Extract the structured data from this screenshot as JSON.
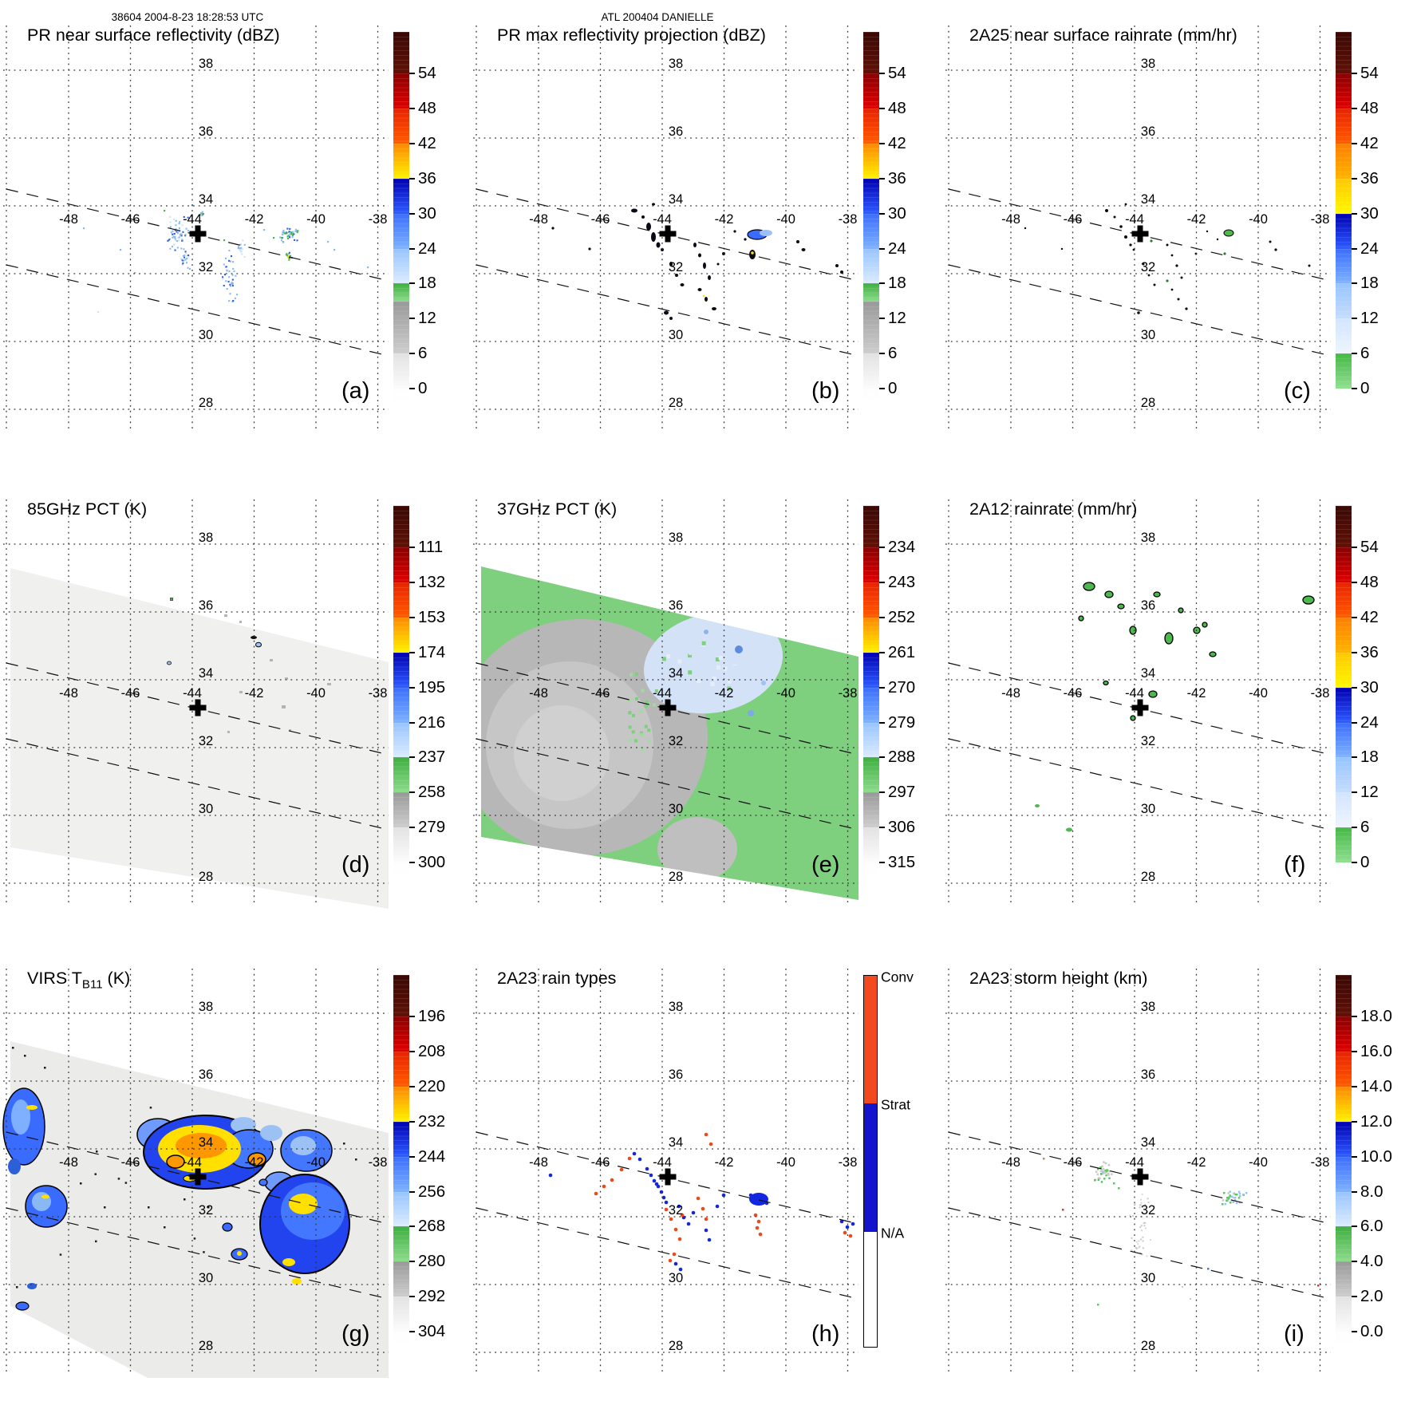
{
  "header": {
    "scan_info": "38604 2004-8-23 18:28:53 UTC",
    "storm_name": "ATL 200404 DANIELLE"
  },
  "map_grid": {
    "lon_labels": [
      "-48",
      "-46",
      "-44",
      "-42",
      "-40",
      "-38"
    ],
    "lat_labels": [
      "38",
      "36",
      "34",
      "32",
      "30",
      "28"
    ]
  },
  "palette": {
    "pale_blue": "#cfe2fa",
    "light_blue": "#8ab8f2",
    "mid_blue": "#2c5fd8",
    "deep_blue": "#1326e0",
    "royal": "#3a6bff",
    "bright_blue": "#2244ee",
    "sky": "#6f9bff",
    "powder": "#9cc2f5",
    "green": "#46b846",
    "blob_green": "#4db84d",
    "dark_green": "#2f7d2f",
    "yellow": "#ffe000",
    "orange": "#ff9800",
    "conv_orange": "#f04818",
    "swath_gray": "#f0f0ef",
    "swath_green": "#7ecf7e",
    "cloud_gray": "#b7b7b7",
    "pale_gray": "#c9c9c9",
    "virs_gray": "#ebebea",
    "blue_patch": "#d4e2f8",
    "marker_black": "#000000"
  },
  "scales": {
    "dbz": {
      "segments": [
        [
          "#3a0803",
          "#601107",
          0.112
        ],
        [
          "#8c0000",
          "#e00000",
          0.0944
        ],
        [
          "#ea2200",
          "#ff5c00",
          0.0944
        ],
        [
          "#ff8800",
          "#fff200",
          0.0944
        ],
        [
          "#0000b4",
          "#2e5cff",
          0.0944
        ],
        [
          "#3a6eff",
          "#7fb2ff",
          0.0944
        ],
        [
          "#96c4ff",
          "#dcebff",
          0.0944
        ],
        [
          "#3fae3f",
          "#8cdc8c",
          0.0476
        ],
        [
          "#999999",
          "#cdcdcd",
          0.1412
        ],
        [
          "#e2e2e2",
          "#fbfbfb",
          0.0944
        ],
        [
          "#fdfdfd",
          "#ffffff",
          0.0386
        ]
      ]
    },
    "rain": {
      "segments": [
        [
          "#3a0803",
          "#601107",
          0.112
        ],
        [
          "#8c0000",
          "#e00000",
          0.0944
        ],
        [
          "#ea2200",
          "#ff5c00",
          0.0944
        ],
        [
          "#ff7e00",
          "#ffb400",
          0.0944
        ],
        [
          "#ffc800",
          "#fff800",
          0.0944
        ],
        [
          "#0000b4",
          "#2e5cff",
          0.0944
        ],
        [
          "#3a6eff",
          "#7fb2ff",
          0.0944
        ],
        [
          "#96c4ff",
          "#c4dcff",
          0.0944
        ],
        [
          "#d2e4ff",
          "#eef5ff",
          0.0944
        ],
        [
          "#46b846",
          "#8fe08f",
          0.0944
        ],
        [
          "#fdfdfd",
          "#ffffff",
          0.0386
        ]
      ]
    },
    "pct": {
      "segments": [
        [
          "#3a0803",
          "#601107",
          0.112
        ],
        [
          "#8c0000",
          "#e00000",
          0.0944
        ],
        [
          "#ea2200",
          "#ff5c00",
          0.0944
        ],
        [
          "#ff8800",
          "#fff200",
          0.0944
        ],
        [
          "#0000b4",
          "#2e5cff",
          0.0944
        ],
        [
          "#3a6eff",
          "#7fb2ff",
          0.0944
        ],
        [
          "#96c4ff",
          "#dcebff",
          0.0944
        ],
        [
          "#3fae3f",
          "#8cdc8c",
          0.0944
        ],
        [
          "#999999",
          "#cdcdcd",
          0.0944
        ],
        [
          "#e2e2e2",
          "#fcfcfc",
          0.0944
        ],
        [
          "#fdfdfd",
          "#ffffff",
          0.0386
        ]
      ]
    },
    "raintype": {
      "categories": [
        {
          "label": "Conv",
          "color": "#f2491e",
          "frac": 0.345
        },
        {
          "label": "Strat",
          "color": "#1414cc",
          "frac": 0.345
        },
        {
          "label": "N/A",
          "color": "#ffffff",
          "frac": 0.31
        }
      ]
    }
  },
  "panels": [
    {
      "id": "a",
      "letter": "(a)",
      "title_pre": "PR near surface reflectivity (dBZ)",
      "title_sub": "",
      "title_post": "",
      "scale": "dbz",
      "ticks": [
        "54",
        "48",
        "42",
        "36",
        "30",
        "24",
        "18",
        "12",
        "6",
        "0"
      ]
    },
    {
      "id": "b",
      "letter": "(b)",
      "title_pre": "PR max reflectivity projection (dBZ)",
      "title_sub": "",
      "title_post": "",
      "scale": "dbz",
      "ticks": [
        "54",
        "48",
        "42",
        "36",
        "30",
        "24",
        "18",
        "12",
        "6",
        "0"
      ]
    },
    {
      "id": "c",
      "letter": "(c)",
      "title_pre": "2A25 near surface rainrate (mm/hr)",
      "title_sub": "",
      "title_post": "",
      "scale": "rain",
      "ticks": [
        "54",
        "48",
        "42",
        "36",
        "30",
        "24",
        "18",
        "12",
        "6",
        "0"
      ]
    },
    {
      "id": "d",
      "letter": "(d)",
      "title_pre": "85GHz PCT (K)",
      "title_sub": "",
      "title_post": "",
      "scale": "pct",
      "ticks": [
        "111",
        "132",
        "153",
        "174",
        "195",
        "216",
        "237",
        "258",
        "279",
        "300"
      ]
    },
    {
      "id": "e",
      "letter": "(e)",
      "title_pre": "37GHz PCT (K)",
      "title_sub": "",
      "title_post": "",
      "scale": "pct",
      "ticks": [
        "234",
        "243",
        "252",
        "261",
        "270",
        "279",
        "288",
        "297",
        "306",
        "315"
      ]
    },
    {
      "id": "f",
      "letter": "(f)",
      "title_pre": "2A12 rainrate (mm/hr)",
      "title_sub": "",
      "title_post": "",
      "scale": "rain",
      "ticks": [
        "54",
        "48",
        "42",
        "36",
        "30",
        "24",
        "18",
        "12",
        "6",
        "0"
      ]
    },
    {
      "id": "g",
      "letter": "(g)",
      "title_pre": "VIRS T",
      "title_sub": "B11",
      "title_post": " (K)",
      "scale": "pct",
      "ticks": [
        "196",
        "208",
        "220",
        "232",
        "244",
        "256",
        "268",
        "280",
        "292",
        "304"
      ]
    },
    {
      "id": "h",
      "letter": "(h)",
      "title_pre": "2A23 rain types",
      "title_sub": "",
      "title_post": "",
      "scale": "raintype",
      "ticks": [],
      "cat_labels": [
        "Conv",
        "Strat",
        "N/A"
      ]
    },
    {
      "id": "i",
      "letter": "(i)",
      "title_pre": "2A23 storm height (km)",
      "title_sub": "",
      "title_post": "",
      "scale": "pct",
      "ticks": [
        "18.0",
        "16.0",
        "14.0",
        "12.0",
        "10.0",
        "8.0",
        "6.0",
        "4.0",
        "2.0",
        "0.0"
      ]
    }
  ],
  "chart_data": [
    {
      "type": "heatmap",
      "panel": "a",
      "title": "PR near surface reflectivity (dBZ)",
      "colorbar_ticks": [
        54,
        48,
        42,
        36,
        30,
        24,
        18,
        12,
        6,
        0
      ],
      "lon_gridlines": [
        -48,
        -46,
        -44,
        -42,
        -40,
        -38
      ],
      "lat_gridlines": [
        38,
        36,
        34,
        32,
        30,
        28
      ],
      "storm_center_lonlat": [
        -43.8,
        33.3
      ],
      "legend_position": "right"
    },
    {
      "type": "heatmap",
      "panel": "b",
      "title": "PR max reflectivity projection (dBZ)",
      "colorbar_ticks": [
        54,
        48,
        42,
        36,
        30,
        24,
        18,
        12,
        6,
        0
      ],
      "lon_gridlines": [
        -48,
        -46,
        -44,
        -42,
        -40,
        -38
      ],
      "lat_gridlines": [
        38,
        36,
        34,
        32,
        30,
        28
      ],
      "storm_center_lonlat": [
        -43.8,
        33.3
      ],
      "legend_position": "right"
    },
    {
      "type": "heatmap",
      "panel": "c",
      "title": "2A25 near surface rainrate (mm/hr)",
      "colorbar_ticks": [
        54,
        48,
        42,
        36,
        30,
        24,
        18,
        12,
        6,
        0
      ],
      "lon_gridlines": [
        -48,
        -46,
        -44,
        -42,
        -40,
        -38
      ],
      "lat_gridlines": [
        38,
        36,
        34,
        32,
        30,
        28
      ],
      "storm_center_lonlat": [
        -43.8,
        33.3
      ],
      "legend_position": "right"
    },
    {
      "type": "heatmap",
      "panel": "d",
      "title": "85GHz PCT (K)",
      "colorbar_ticks": [
        111,
        132,
        153,
        174,
        195,
        216,
        237,
        258,
        279,
        300
      ],
      "lon_gridlines": [
        -48,
        -46,
        -44,
        -42,
        -40,
        -38
      ],
      "lat_gridlines": [
        38,
        36,
        34,
        32,
        30,
        28
      ],
      "storm_center_lonlat": [
        -43.8,
        33.3
      ],
      "legend_position": "right"
    },
    {
      "type": "heatmap",
      "panel": "e",
      "title": "37GHz PCT (K)",
      "colorbar_ticks": [
        234,
        243,
        252,
        261,
        270,
        279,
        288,
        297,
        306,
        315
      ],
      "lon_gridlines": [
        -48,
        -46,
        -44,
        -42,
        -40,
        -38
      ],
      "lat_gridlines": [
        38,
        36,
        34,
        32,
        30,
        28
      ],
      "storm_center_lonlat": [
        -43.8,
        33.3
      ],
      "legend_position": "right"
    },
    {
      "type": "heatmap",
      "panel": "f",
      "title": "2A12 rainrate (mm/hr)",
      "colorbar_ticks": [
        54,
        48,
        42,
        36,
        30,
        24,
        18,
        12,
        6,
        0
      ],
      "lon_gridlines": [
        -48,
        -46,
        -44,
        -42,
        -40,
        -38
      ],
      "lat_gridlines": [
        38,
        36,
        34,
        32,
        30,
        28
      ],
      "storm_center_lonlat": [
        -43.8,
        33.3
      ],
      "legend_position": "right"
    },
    {
      "type": "heatmap",
      "panel": "g",
      "title": "VIRS TB11 (K)",
      "colorbar_ticks": [
        196,
        208,
        220,
        232,
        244,
        256,
        268,
        280,
        292,
        304
      ],
      "lon_gridlines": [
        -48,
        -46,
        -44,
        -42,
        -40,
        -38
      ],
      "lat_gridlines": [
        38,
        36,
        34,
        32,
        30,
        28
      ],
      "storm_center_lonlat": [
        -43.8,
        33.3
      ],
      "legend_position": "right"
    },
    {
      "type": "heatmap",
      "panel": "h",
      "title": "2A23 rain types",
      "categories": [
        "Conv",
        "Strat",
        "N/A"
      ],
      "lon_gridlines": [
        -48,
        -46,
        -44,
        -42,
        -40,
        -38
      ],
      "lat_gridlines": [
        38,
        36,
        34,
        32,
        30,
        28
      ],
      "storm_center_lonlat": [
        -43.8,
        33.3
      ],
      "legend_position": "right"
    },
    {
      "type": "heatmap",
      "panel": "i",
      "title": "2A23 storm height (km)",
      "colorbar_ticks": [
        18.0,
        16.0,
        14.0,
        12.0,
        10.0,
        8.0,
        6.0,
        4.0,
        2.0,
        0.0
      ],
      "lon_gridlines": [
        -48,
        -46,
        -44,
        -42,
        -40,
        -38
      ],
      "lat_gridlines": [
        38,
        36,
        34,
        32,
        30,
        28
      ],
      "storm_center_lonlat": [
        -43.8,
        33.3
      ],
      "legend_position": "right"
    }
  ]
}
